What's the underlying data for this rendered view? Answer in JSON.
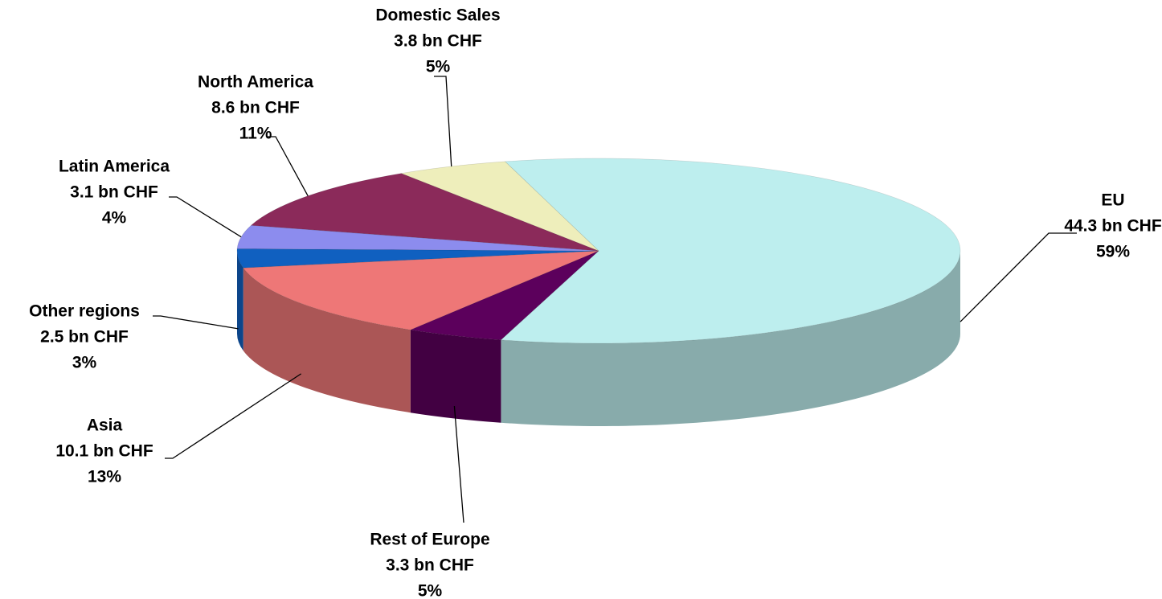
{
  "chart_data": {
    "type": "pie",
    "categories": [
      "EU",
      "Rest of Europe",
      "Asia",
      "Other regions",
      "Latin America",
      "North America",
      "Domestic Sales"
    ],
    "values": [
      44.3,
      3.3,
      10.1,
      2.5,
      3.1,
      8.6,
      3.8
    ],
    "value_labels": [
      "44.3 bn CHF",
      "3.3 bn CHF",
      "10.1 bn CHF",
      "2.5 bn CHF",
      "3.1 bn CHF",
      "8.6 bn CHF",
      "3.8 bn CHF"
    ],
    "percents": [
      59,
      5,
      13,
      3,
      4,
      11,
      5
    ],
    "percent_labels": [
      "59%",
      "5%",
      "13%",
      "3%",
      "4%",
      "11%",
      "5%"
    ],
    "colors": [
      "#bdeeee",
      "#5c005c",
      "#ee7777",
      "#1060c0",
      "#8c8cee",
      "#8b2a5a",
      "#eeeebb"
    ]
  }
}
